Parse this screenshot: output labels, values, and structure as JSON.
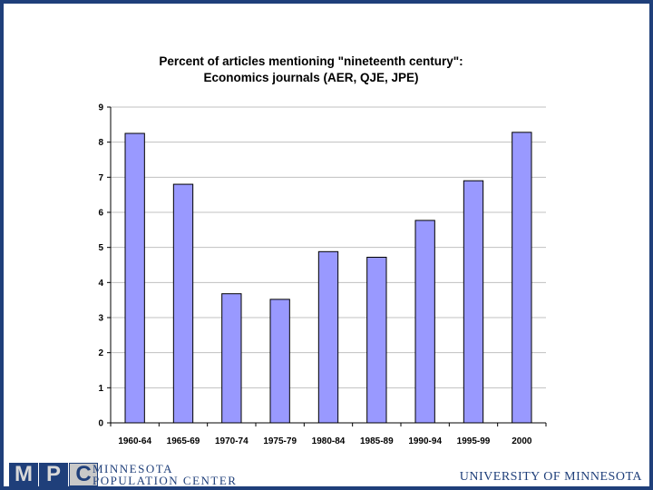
{
  "chart_data": {
    "type": "bar",
    "title": "Percent of articles mentioning \"nineteenth century\":",
    "subtitle": "Economics journals (AER, QJE, JPE)",
    "categories": [
      "1960-64",
      "1965-69",
      "1970-74",
      "1975-79",
      "1980-84",
      "1985-89",
      "1990-94",
      "1995-99",
      "2000"
    ],
    "values": [
      8.25,
      6.8,
      3.68,
      3.52,
      4.88,
      4.72,
      5.77,
      6.9,
      8.28
    ],
    "yticks": [
      "0",
      "1",
      "2",
      "3",
      "4",
      "5",
      "6",
      "7",
      "8",
      "9"
    ],
    "ylim": [
      0,
      9
    ],
    "grid": true,
    "bar_color": "#9999ff",
    "bar_outline": "#000000"
  },
  "footer": {
    "logo_letters": [
      "M",
      "P",
      "C"
    ],
    "org_line1": "MINNESOTA",
    "org_line2": "POPULATION CENTER",
    "university": "UNIVERSITY OF MINNESOTA"
  },
  "colors": {
    "frame": "#1f3f7a",
    "grid": "#c0c0c0"
  }
}
